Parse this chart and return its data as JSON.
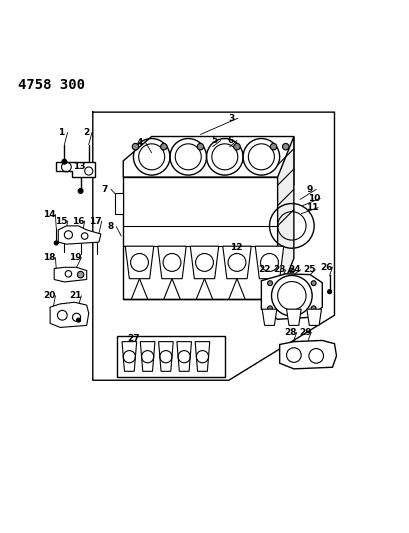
{
  "title": "4758 300",
  "bg_color": "#ffffff",
  "fg_color": "#000000",
  "figsize": [
    4.09,
    5.33
  ],
  "dpi": 100
}
